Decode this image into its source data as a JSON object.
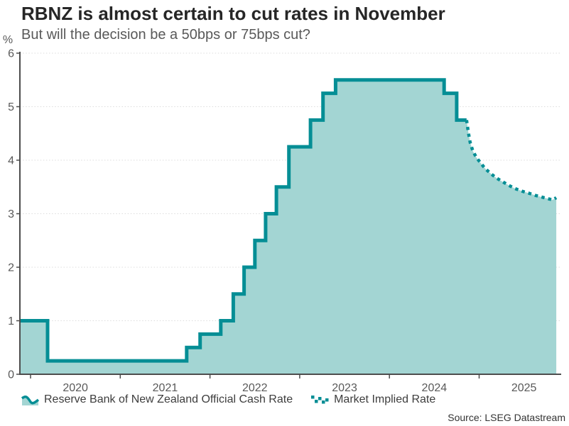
{
  "chart_data": {
    "type": "line",
    "title": "RBNZ is almost certain to cut rates in November",
    "subtitle": "But will the decision be a 50bps or 75bps cut?",
    "ylabel": "%",
    "xlabel": "",
    "x_range": [
      2019.88,
      2025.86
    ],
    "ylim": [
      0,
      6
    ],
    "y_ticks": [
      0,
      1,
      2,
      3,
      4,
      5,
      6
    ],
    "x_tick_years": [
      2020,
      2021,
      2022,
      2023,
      2024,
      2025
    ],
    "grid": "dotted horizontal gridlines at each integer",
    "legend_position": "bottom-left",
    "series": [
      {
        "name": "Reserve Bank of New Zealand Official Cash Rate",
        "type": "step",
        "line_style": "solid",
        "points": [
          [
            2019.88,
            1.0
          ],
          [
            2020.19,
            0.25
          ],
          [
            2021.74,
            0.5
          ],
          [
            2021.89,
            0.75
          ],
          [
            2022.12,
            1.0
          ],
          [
            2022.26,
            1.5
          ],
          [
            2022.38,
            2.0
          ],
          [
            2022.5,
            2.5
          ],
          [
            2022.62,
            3.0
          ],
          [
            2022.74,
            3.5
          ],
          [
            2022.88,
            4.25
          ],
          [
            2023.12,
            4.75
          ],
          [
            2023.26,
            5.25
          ],
          [
            2023.4,
            5.5
          ],
          [
            2024.61,
            5.25
          ],
          [
            2024.75,
            4.75
          ],
          [
            2024.86,
            4.75
          ]
        ]
      },
      {
        "name": "Market Implied Rate",
        "type": "line",
        "line_style": "dotted",
        "points": [
          [
            2024.86,
            4.75
          ],
          [
            2024.88,
            4.52
          ],
          [
            2024.9,
            4.33
          ],
          [
            2024.93,
            4.17
          ],
          [
            2024.97,
            4.05
          ],
          [
            2025.02,
            3.94
          ],
          [
            2025.07,
            3.84
          ],
          [
            2025.13,
            3.75
          ],
          [
            2025.19,
            3.67
          ],
          [
            2025.26,
            3.6
          ],
          [
            2025.33,
            3.53
          ],
          [
            2025.4,
            3.47
          ],
          [
            2025.48,
            3.42
          ],
          [
            2025.56,
            3.38
          ],
          [
            2025.63,
            3.34
          ],
          [
            2025.7,
            3.31
          ],
          [
            2025.77,
            3.28
          ],
          [
            2025.82,
            3.26
          ],
          [
            2025.86,
            3.3
          ]
        ]
      }
    ]
  },
  "legend": {
    "items": [
      {
        "icon": "solid-wavy-line-icon",
        "label": "Reserve Bank of New Zealand Official Cash Rate"
      },
      {
        "icon": "dotted-line-icon",
        "label": "Market Implied Rate"
      }
    ]
  },
  "source": "Source: LSEG Datastream",
  "colors": {
    "line": "#058e95",
    "fill": "#a3d5d3",
    "grid": "#dcdcdc",
    "axis": "#4d4d4d",
    "title": "#262626",
    "text": "#595959",
    "legend_text": "#3d3d3d",
    "source_text": "#333333"
  }
}
